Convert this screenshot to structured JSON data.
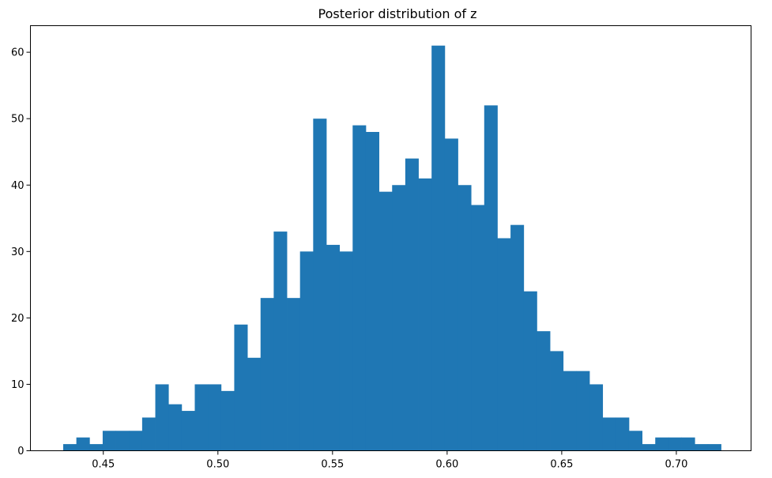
{
  "chart_data": {
    "type": "bar",
    "title": "Posterior distribution of z",
    "xlabel": "",
    "ylabel": "",
    "bin_start": 0.4325,
    "bin_width": 0.00574,
    "counts": [
      1,
      2,
      1,
      3,
      3,
      3,
      5,
      10,
      7,
      6,
      10,
      10,
      9,
      19,
      14,
      23,
      33,
      23,
      30,
      50,
      31,
      30,
      49,
      48,
      39,
      40,
      44,
      41,
      61,
      47,
      40,
      37,
      52,
      32,
      34,
      24,
      18,
      15,
      12,
      12,
      10,
      5,
      5,
      3,
      1,
      2,
      2,
      2,
      1,
      1
    ],
    "xlim": [
      0.4182,
      0.7326
    ],
    "ylim": [
      0,
      64
    ],
    "x_ticks": [
      "0.45",
      "0.50",
      "0.55",
      "0.60",
      "0.65",
      "0.70"
    ],
    "y_ticks": [
      "0",
      "10",
      "20",
      "30",
      "40",
      "50",
      "60"
    ],
    "grid": false,
    "bar_color": "#1f77b4"
  }
}
